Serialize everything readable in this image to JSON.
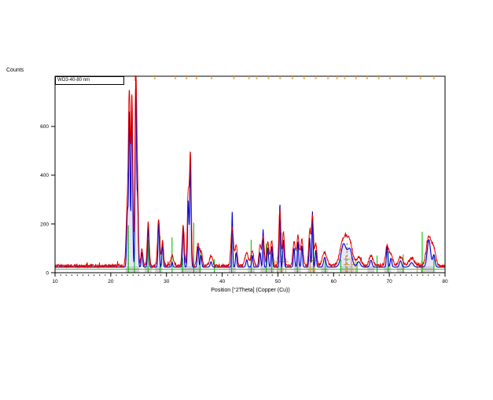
{
  "chart_data": {
    "type": "line",
    "title": "",
    "ylabel": "Counts",
    "xlabel": "Position [°2Theta] (Copper (Cu))",
    "scan_label": "WO3-40-80 nm",
    "xlim": [
      10,
      80
    ],
    "ylim": [
      0,
      806
    ],
    "x_major_ticks": [
      10,
      20,
      30,
      40,
      50,
      60,
      70,
      80
    ],
    "x_minor_tick_step": 1,
    "y_ticks": [
      0,
      200,
      400,
      600
    ],
    "grid": false,
    "legend": "none",
    "colors": {
      "observed": "#e00000",
      "calculated": "#0000cd",
      "calculated_fill": "rgba(100,100,220,0.16)",
      "reference_green": "#00c400",
      "reference_olive": "#9a9a00",
      "reference_orange": "#e09a28",
      "peak_marker_gray": "#d4d4d4",
      "baseline_green": "#2f8f2f",
      "frame": "#000000"
    },
    "observed_baseline_counts": 28,
    "observed_noise_counts": 6,
    "calculated_baseline_counts": 23,
    "background_line_counts": 15,
    "peaks": {
      "fields": [
        "two_theta",
        "observed_counts",
        "calculated_counts",
        "obs_width_deg",
        "calc_width_deg"
      ],
      "rows": [
        [
          23.0,
          260,
          230,
          0.22,
          0.14
        ],
        [
          23.35,
          640,
          635,
          0.16,
          0.12
        ],
        [
          23.8,
          690,
          680,
          0.16,
          0.12
        ],
        [
          24.5,
          770,
          760,
          0.16,
          0.12
        ],
        [
          24.82,
          300,
          280,
          0.14,
          0.11
        ],
        [
          25.6,
          70,
          60,
          0.18,
          0.12
        ],
        [
          26.72,
          178,
          170,
          0.18,
          0.12
        ],
        [
          28.6,
          190,
          182,
          0.2,
          0.12
        ],
        [
          29.3,
          100,
          95,
          0.18,
          0.11
        ],
        [
          31.0,
          42,
          20,
          0.25,
          0.12
        ],
        [
          33.0,
          170,
          160,
          0.18,
          0.12
        ],
        [
          33.9,
          290,
          275,
          0.17,
          0.12
        ],
        [
          34.3,
          450,
          440,
          0.16,
          0.12
        ],
        [
          35.65,
          95,
          85,
          0.2,
          0.12
        ],
        [
          36.2,
          60,
          48,
          0.2,
          0.12
        ],
        [
          38.0,
          40,
          22,
          0.3,
          0.15
        ],
        [
          41.8,
          160,
          228,
          0.22,
          0.09
        ],
        [
          42.5,
          85,
          60,
          0.2,
          0.12
        ],
        [
          44.4,
          50,
          30,
          0.3,
          0.15
        ],
        [
          45.4,
          62,
          48,
          0.25,
          0.12
        ],
        [
          46.8,
          80,
          60,
          0.2,
          0.12
        ],
        [
          47.35,
          118,
          155,
          0.2,
          0.09
        ],
        [
          48.2,
          100,
          80,
          0.2,
          0.12
        ],
        [
          48.9,
          100,
          85,
          0.2,
          0.12
        ],
        [
          50.35,
          230,
          262,
          0.18,
          0.09
        ],
        [
          51.0,
          138,
          112,
          0.18,
          0.12
        ],
        [
          52.9,
          98,
          78,
          0.22,
          0.12
        ],
        [
          53.6,
          125,
          105,
          0.22,
          0.12
        ],
        [
          54.3,
          108,
          88,
          0.22,
          0.12
        ],
        [
          55.7,
          140,
          120,
          0.18,
          0.12
        ],
        [
          56.2,
          205,
          228,
          0.18,
          0.09
        ],
        [
          56.8,
          90,
          70,
          0.2,
          0.12
        ],
        [
          58.4,
          55,
          40,
          0.4,
          0.2
        ],
        [
          61.8,
          112,
          95,
          0.6,
          0.45
        ],
        [
          62.9,
          88,
          72,
          0.5,
          0.4
        ],
        [
          64.5,
          35,
          22,
          0.4,
          0.3
        ],
        [
          66.7,
          42,
          28,
          0.35,
          0.2
        ],
        [
          69.6,
          82,
          90,
          0.28,
          0.12
        ],
        [
          70.3,
          48,
          36,
          0.3,
          0.15
        ],
        [
          72.0,
          38,
          26,
          0.4,
          0.2
        ],
        [
          74.0,
          30,
          18,
          0.5,
          0.3
        ],
        [
          77.1,
          118,
          112,
          0.45,
          0.3
        ],
        [
          78.0,
          62,
          50,
          0.35,
          0.2
        ]
      ]
    },
    "reference_lines_green": [
      [
        23.15,
        195
      ],
      [
        24.25,
        165
      ],
      [
        26.7,
        135
      ],
      [
        28.85,
        150
      ],
      [
        31.0,
        145
      ],
      [
        32.9,
        60
      ],
      [
        34.9,
        205
      ],
      [
        36.0,
        87
      ],
      [
        38.6,
        55
      ],
      [
        41.7,
        140
      ],
      [
        45.2,
        135
      ],
      [
        47.9,
        120
      ],
      [
        48.9,
        80
      ],
      [
        50.6,
        165
      ],
      [
        53.5,
        120
      ],
      [
        56.4,
        160
      ],
      [
        58.5,
        55
      ],
      [
        61.3,
        55
      ],
      [
        64.2,
        45
      ],
      [
        67.8,
        70
      ],
      [
        69.8,
        87
      ],
      [
        72.5,
        75
      ],
      [
        75.9,
        168
      ],
      [
        78.0,
        71
      ]
    ],
    "reference_lines_olive_dashed": [
      [
        23.15,
        185
      ],
      [
        62.4,
        130
      ]
    ],
    "reference_marks_orange": {
      "vertical_lines": [
        [
          49.9,
          65
        ],
        [
          50.7,
          70
        ],
        [
          51.4,
          60
        ],
        [
          55.8,
          75
        ],
        [
          56.6,
          65
        ],
        [
          62.2,
          70
        ],
        [
          63.2,
          65
        ],
        [
          63.9,
          55
        ],
        [
          75.0,
          45
        ],
        [
          75.8,
          50
        ]
      ],
      "horizontal_dashes": [
        [
          49.4,
          51.9,
          45
        ],
        [
          55.3,
          57.2,
          50
        ],
        [
          61.8,
          64.3,
          55
        ],
        [
          61.8,
          64.3,
          33
        ],
        [
          74.5,
          76.3,
          38
        ]
      ]
    },
    "peak_marker_boxes_two_theta": [
      23.3,
      24.5,
      26.7,
      28.6,
      33.2,
      34.3,
      35.6,
      41.8,
      45.2,
      47.5,
      48.7,
      50.4,
      53.5,
      55.9,
      58.4,
      61.8,
      63.0,
      66.7,
      69.7,
      72.0,
      76.3,
      77.4
    ],
    "top_edge_markers": {
      "red": [
        24.45
      ],
      "orange": [
        27.9,
        31.6,
        33.6,
        35.4,
        38.1,
        42.1,
        44.8,
        46.2,
        48.3,
        50.4,
        52.6,
        54.7,
        56.8,
        59.0,
        60.6,
        62.0,
        64.0,
        66.0,
        68.1,
        70.1,
        73.1,
        75.6,
        78.0
      ]
    }
  }
}
